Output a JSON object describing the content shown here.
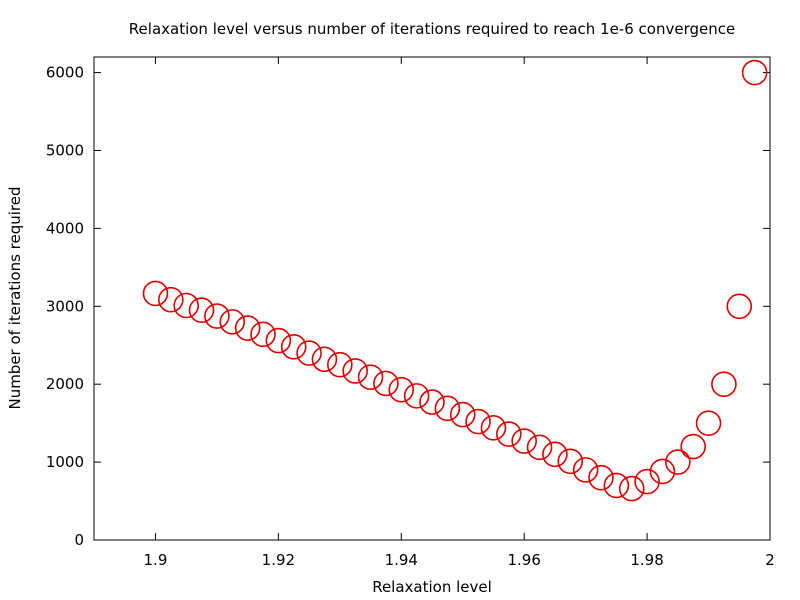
{
  "chart_data": {
    "type": "scatter",
    "title": "Relaxation level versus number of iterations required to reach 1e-6 convergence",
    "xlabel": "Relaxation level",
    "ylabel": "Number of iterations required",
    "xlim": [
      1.89,
      2.0
    ],
    "ylim": [
      0,
      6200
    ],
    "xticks": [
      1.9,
      1.92,
      1.94,
      1.96,
      1.98,
      2.0
    ],
    "xtick_labels": [
      "1.9",
      "1.92",
      "1.94",
      "1.96",
      "1.98",
      "2"
    ],
    "yticks": [
      0,
      1000,
      2000,
      3000,
      4000,
      5000,
      6000
    ],
    "ytick_labels": [
      "0",
      "1000",
      "2000",
      "3000",
      "4000",
      "5000",
      "6000"
    ],
    "grid": false,
    "legend": "none",
    "marker": "open-circle",
    "color": "#e00000",
    "x": [
      1.9,
      1.9025,
      1.905,
      1.9075,
      1.91,
      1.9125,
      1.915,
      1.9175,
      1.92,
      1.9225,
      1.925,
      1.9275,
      1.93,
      1.9325,
      1.935,
      1.9375,
      1.94,
      1.9425,
      1.945,
      1.9475,
      1.95,
      1.9525,
      1.955,
      1.9575,
      1.96,
      1.9625,
      1.965,
      1.9675,
      1.97,
      1.9725,
      1.975,
      1.9775,
      1.98,
      1.9825,
      1.985,
      1.9875,
      1.99,
      1.9925,
      1.995,
      1.9975
    ],
    "y": [
      3165,
      3085,
      3010,
      2950,
      2875,
      2800,
      2720,
      2640,
      2560,
      2480,
      2400,
      2320,
      2250,
      2170,
      2090,
      2010,
      1930,
      1850,
      1770,
      1690,
      1610,
      1520,
      1440,
      1360,
      1270,
      1190,
      1100,
      1010,
      900,
      800,
      700,
      660,
      750,
      880,
      1000,
      1200,
      1500,
      2000,
      3000,
      6000
    ]
  }
}
